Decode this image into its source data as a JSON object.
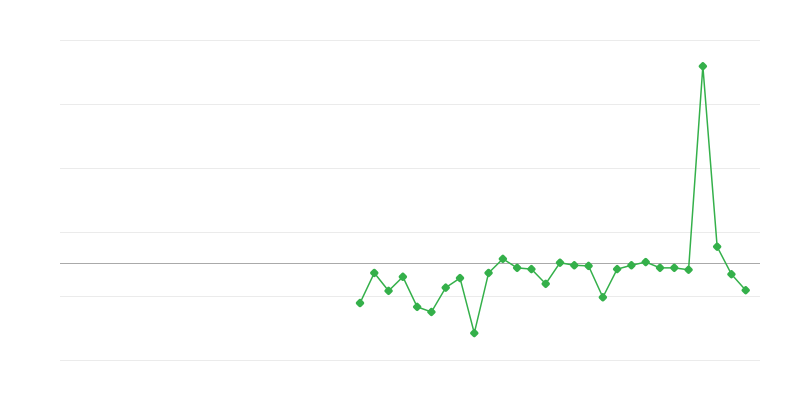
{
  "chart_data": {
    "type": "line",
    "title": "",
    "xlabel": "",
    "ylabel": "",
    "xlim": [
      0,
      49
    ],
    "ylim": [
      0,
      5
    ],
    "grid": true,
    "reference_line": 1.52,
    "legend": "none",
    "colors": {
      "series": "#34b04a",
      "grid": "#ebebeb",
      "reference": "#aaaaaa"
    },
    "series": [
      {
        "x": [
          21,
          22,
          23,
          24,
          25,
          26,
          27,
          28,
          29,
          30,
          31,
          32,
          33,
          34,
          35,
          36,
          37,
          38,
          39,
          40,
          41,
          42,
          43,
          44,
          45,
          46,
          47,
          48
        ],
        "values": [
          0.89,
          1.36,
          1.08,
          1.3,
          0.83,
          0.75,
          1.13,
          1.28,
          0.42,
          1.36,
          1.58,
          1.44,
          1.42,
          1.19,
          1.52,
          1.48,
          1.47,
          0.98,
          1.42,
          1.48,
          1.53,
          1.44,
          1.44,
          1.41,
          4.59,
          1.77,
          1.34,
          1.09
        ]
      }
    ]
  }
}
